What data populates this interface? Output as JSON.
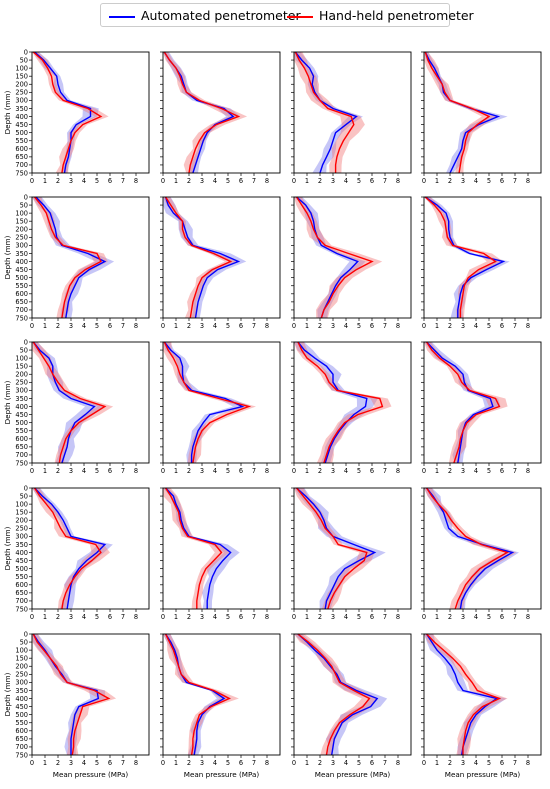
{
  "legend": {
    "automated_label": "Automated penetrometer",
    "handheld_label": "Hand-held penetrometer"
  },
  "colors": {
    "automated": "#0000ff",
    "handheld": "#ff0000",
    "automated_band": "#8080ee",
    "handheld_band": "#f27a7a"
  },
  "chart_data": {
    "type": "line",
    "grid": "5 rows x 4 columns of small-multiple panels",
    "legend_position": "top-center",
    "xlabel": "Mean pressure (MPa)",
    "ylabel": "Depth (mm)",
    "xlim": [
      0,
      9
    ],
    "ylim": [
      750,
      0
    ],
    "x_ticks": [
      0,
      1,
      2,
      3,
      4,
      5,
      6,
      7,
      8
    ],
    "y_ticks": [
      0,
      50,
      100,
      150,
      200,
      250,
      300,
      350,
      400,
      450,
      500,
      550,
      600,
      650,
      700,
      750
    ],
    "depths": [
      0,
      50,
      100,
      150,
      200,
      250,
      300,
      350,
      400,
      450,
      500,
      550,
      600,
      650,
      700,
      750
    ],
    "panels": [
      {
        "automated": [
          0.2,
          0.9,
          1.4,
          1.9,
          2.0,
          2.2,
          2.7,
          4.5,
          4.5,
          3.4,
          3.0,
          3.0,
          2.9,
          2.8,
          2.6,
          2.5
        ],
        "handheld": [
          0.1,
          0.8,
          1.2,
          1.5,
          1.6,
          1.8,
          2.4,
          4.3,
          5.3,
          3.9,
          3.3,
          3.0,
          2.8,
          2.6,
          2.4,
          2.3
        ]
      },
      {
        "automated": [
          0.1,
          0.5,
          1.0,
          1.4,
          1.6,
          1.8,
          2.6,
          4.7,
          5.4,
          4.0,
          3.4,
          3.1,
          2.9,
          2.7,
          2.5,
          2.3
        ],
        "handheld": [
          0.1,
          0.5,
          1.0,
          1.3,
          1.5,
          1.8,
          2.8,
          4.5,
          5.8,
          4.1,
          3.2,
          2.8,
          2.5,
          2.3,
          2.1,
          2.0
        ]
      },
      {
        "automated": [
          0.1,
          0.6,
          1.2,
          1.5,
          1.4,
          1.6,
          2.0,
          3.0,
          4.8,
          4.0,
          3.2,
          3.0,
          2.8,
          2.5,
          2.2,
          2.0
        ],
        "handheld": [
          0.1,
          0.4,
          0.8,
          1.1,
          1.3,
          1.5,
          2.0,
          2.6,
          4.4,
          4.6,
          4.2,
          3.8,
          3.5,
          3.3,
          3.2,
          3.2
        ]
      },
      {
        "automated": [
          0.1,
          0.4,
          0.8,
          1.1,
          1.4,
          1.5,
          2.0,
          3.6,
          5.7,
          4.2,
          3.2,
          3.0,
          2.9,
          2.6,
          2.3,
          2.0
        ],
        "handheld": [
          0.1,
          0.3,
          0.6,
          1.0,
          1.4,
          1.6,
          2.0,
          3.7,
          5.0,
          4.1,
          3.4,
          3.2,
          3.1,
          2.9,
          2.8,
          2.7
        ]
      },
      {
        "automated": [
          0.3,
          0.9,
          1.4,
          1.6,
          1.8,
          1.9,
          2.3,
          4.3,
          5.6,
          4.4,
          3.6,
          3.3,
          3.0,
          2.8,
          2.7,
          2.6
        ],
        "handheld": [
          0.2,
          0.7,
          1.1,
          1.3,
          1.5,
          1.8,
          2.4,
          5.0,
          5.3,
          4.1,
          3.3,
          2.9,
          2.7,
          2.5,
          2.4,
          2.3
        ]
      },
      {
        "automated": [
          0.2,
          0.4,
          0.8,
          1.5,
          1.7,
          1.9,
          2.3,
          4.4,
          5.8,
          4.2,
          3.4,
          3.1,
          2.9,
          2.7,
          2.6,
          2.5
        ],
        "handheld": [
          0.2,
          0.6,
          1.0,
          1.5,
          1.5,
          1.7,
          2.2,
          3.9,
          5.2,
          3.8,
          3.0,
          2.7,
          2.5,
          2.3,
          2.2,
          2.1
        ]
      },
      {
        "automated": [
          0.2,
          0.9,
          1.3,
          1.5,
          1.6,
          1.8,
          2.1,
          3.3,
          4.9,
          4.3,
          3.6,
          3.2,
          2.9,
          2.6,
          2.3,
          2.1
        ],
        "handheld": [
          0.2,
          0.6,
          1.0,
          1.3,
          1.5,
          1.8,
          2.4,
          4.2,
          6.0,
          4.8,
          3.9,
          3.4,
          3.0,
          2.7,
          2.3,
          2.1
        ]
      },
      {
        "automated": [
          0.1,
          1.0,
          1.7,
          1.9,
          1.9,
          2.0,
          2.3,
          3.5,
          6.1,
          4.8,
          3.6,
          3.0,
          2.8,
          2.7,
          2.6,
          2.6
        ],
        "handheld": [
          0.1,
          0.8,
          1.3,
          1.6,
          1.7,
          1.8,
          2.2,
          4.6,
          5.5,
          4.2,
          3.4,
          3.1,
          3.0,
          2.9,
          2.8,
          2.8
        ]
      },
      {
        "automated": [
          0.1,
          0.6,
          1.3,
          1.6,
          1.6,
          1.8,
          2.1,
          3.0,
          4.8,
          4.1,
          3.3,
          3.0,
          2.8,
          2.7,
          2.5,
          2.3
        ],
        "handheld": [
          0.1,
          0.5,
          0.9,
          1.3,
          1.6,
          2.0,
          2.5,
          3.7,
          5.6,
          4.6,
          3.6,
          3.0,
          2.6,
          2.4,
          2.2,
          2.1
        ]
      },
      {
        "automated": [
          0.1,
          0.6,
          1.3,
          1.5,
          1.5,
          1.6,
          2.2,
          4.8,
          6.1,
          3.6,
          3.1,
          2.7,
          2.5,
          2.3,
          2.2,
          2.2
        ],
        "handheld": [
          0.1,
          0.4,
          0.8,
          1.1,
          1.3,
          1.6,
          2.0,
          4.3,
          6.6,
          4.9,
          3.6,
          3.0,
          2.7,
          2.5,
          2.4,
          2.3
        ]
      },
      {
        "automated": [
          0.3,
          0.8,
          1.6,
          2.5,
          3.0,
          3.0,
          3.4,
          5.6,
          5.5,
          4.6,
          4.0,
          3.5,
          3.1,
          2.8,
          2.6,
          2.4
        ],
        "handheld": [
          0.3,
          0.6,
          1.0,
          1.8,
          2.4,
          2.7,
          3.3,
          6.6,
          6.8,
          4.9,
          3.9,
          3.4,
          3.0,
          2.7,
          2.5,
          2.3
        ]
      },
      {
        "automated": [
          0.2,
          0.8,
          1.4,
          2.4,
          3.0,
          3.1,
          3.4,
          5.1,
          5.3,
          3.8,
          3.2,
          3.0,
          2.9,
          2.8,
          2.7,
          2.6
        ],
        "handheld": [
          0.2,
          0.6,
          1.2,
          2.0,
          2.6,
          2.9,
          3.5,
          5.5,
          5.8,
          4.0,
          3.3,
          3.0,
          2.8,
          2.7,
          2.5,
          2.3
        ]
      },
      {
        "automated": [
          0.2,
          0.8,
          1.5,
          2.0,
          2.4,
          2.7,
          3.0,
          5.6,
          5.0,
          4.2,
          3.6,
          3.2,
          3.0,
          2.9,
          2.8,
          2.7
        ],
        "handheld": [
          0.2,
          0.6,
          1.1,
          1.6,
          1.9,
          2.2,
          2.6,
          4.9,
          5.3,
          4.6,
          3.8,
          3.3,
          2.9,
          2.6,
          2.4,
          2.3
        ]
      },
      {
        "automated": [
          0.2,
          0.8,
          1.0,
          1.3,
          1.4,
          1.6,
          2.0,
          4.4,
          5.2,
          4.6,
          4.1,
          3.8,
          3.6,
          3.5,
          3.4,
          3.4
        ],
        "handheld": [
          0.2,
          0.6,
          0.9,
          1.2,
          1.3,
          1.5,
          1.9,
          4.0,
          4.5,
          3.9,
          3.3,
          3.0,
          2.8,
          2.7,
          2.6,
          2.6
        ]
      },
      {
        "automated": [
          0.2,
          0.9,
          1.5,
          2.0,
          2.3,
          2.5,
          3.0,
          4.6,
          6.2,
          5.0,
          3.9,
          3.4,
          3.1,
          2.8,
          2.5,
          2.4
        ],
        "handheld": [
          0.2,
          0.7,
          1.2,
          1.7,
          2.1,
          2.4,
          3.0,
          3.4,
          5.6,
          5.4,
          4.6,
          3.9,
          3.5,
          3.1,
          2.8,
          2.6
        ]
      },
      {
        "automated": [
          0.2,
          0.7,
          1.1,
          1.5,
          1.7,
          1.9,
          2.6,
          4.5,
          6.8,
          5.7,
          4.7,
          4.1,
          3.6,
          3.2,
          2.9,
          2.8
        ],
        "handheld": [
          0.2,
          0.6,
          1.1,
          1.7,
          2.1,
          2.6,
          3.2,
          4.4,
          6.4,
          5.3,
          4.3,
          3.7,
          3.2,
          2.9,
          2.6,
          2.4
        ]
      },
      {
        "automated": [
          0.1,
          0.5,
          1.0,
          1.4,
          1.8,
          2.3,
          2.7,
          5.0,
          5.1,
          3.6,
          3.3,
          3.2,
          3.1,
          3.0,
          3.0,
          3.0
        ],
        "handheld": [
          0.1,
          0.4,
          0.9,
          1.4,
          1.9,
          2.2,
          2.7,
          4.8,
          5.9,
          3.9,
          3.7,
          3.5,
          3.3,
          3.2,
          3.2,
          3.1
        ]
      },
      {
        "automated": [
          0.2,
          0.6,
          0.9,
          1.1,
          1.2,
          1.4,
          1.8,
          3.8,
          4.7,
          3.6,
          3.0,
          2.7,
          2.6,
          2.6,
          2.5,
          2.4
        ],
        "handheld": [
          0.2,
          0.5,
          0.8,
          1.0,
          1.2,
          1.4,
          2.0,
          3.9,
          5.1,
          3.7,
          2.8,
          2.6,
          2.4,
          2.3,
          2.3,
          2.2
        ]
      },
      {
        "automated": [
          0.3,
          1.0,
          1.6,
          2.3,
          2.8,
          3.3,
          3.6,
          4.8,
          6.4,
          5.9,
          4.5,
          3.7,
          3.4,
          3.1,
          3.0,
          2.9
        ],
        "handheld": [
          0.3,
          1.1,
          1.8,
          2.4,
          2.9,
          3.2,
          3.5,
          4.6,
          5.8,
          5.3,
          4.3,
          3.5,
          3.1,
          2.8,
          2.6,
          2.5
        ]
      },
      {
        "automated": [
          0.2,
          0.6,
          1.0,
          1.6,
          2.1,
          2.4,
          2.6,
          3.0,
          5.6,
          4.7,
          4.0,
          3.6,
          3.4,
          3.2,
          3.0,
          2.9
        ],
        "handheld": [
          0.2,
          0.8,
          1.5,
          2.2,
          2.8,
          3.2,
          3.7,
          4.1,
          5.8,
          4.5,
          3.8,
          3.4,
          3.2,
          3.1,
          3.0,
          3.0
        ]
      }
    ],
    "bands": [
      {
        "automated": 0.35,
        "handheld": 0.45
      },
      {
        "automated": 0.4,
        "handheld": 0.45
      },
      {
        "automated": 0.5,
        "handheld": 0.6
      },
      {
        "automated": 0.4,
        "handheld": 0.45
      },
      {
        "automated": 0.5,
        "handheld": 0.45
      },
      {
        "automated": 0.5,
        "handheld": 0.4
      },
      {
        "automated": 0.5,
        "handheld": 0.6
      },
      {
        "automated": 0.45,
        "handheld": 0.4
      },
      {
        "automated": 0.6,
        "handheld": 0.5
      },
      {
        "automated": 0.45,
        "handheld": 0.5
      },
      {
        "automated": 0.55,
        "handheld": 0.55
      },
      {
        "automated": 0.5,
        "handheld": 0.5
      },
      {
        "automated": 0.45,
        "handheld": 0.45
      },
      {
        "automated": 0.4,
        "handheld": 0.5
      },
      {
        "automated": 0.6,
        "handheld": 0.55
      },
      {
        "automated": 0.45,
        "handheld": 0.5
      },
      {
        "automated": 0.5,
        "handheld": 0.5
      },
      {
        "automated": 0.4,
        "handheld": 0.45
      },
      {
        "automated": 0.55,
        "handheld": 0.55
      },
      {
        "automated": 0.5,
        "handheld": 0.55
      }
    ]
  }
}
